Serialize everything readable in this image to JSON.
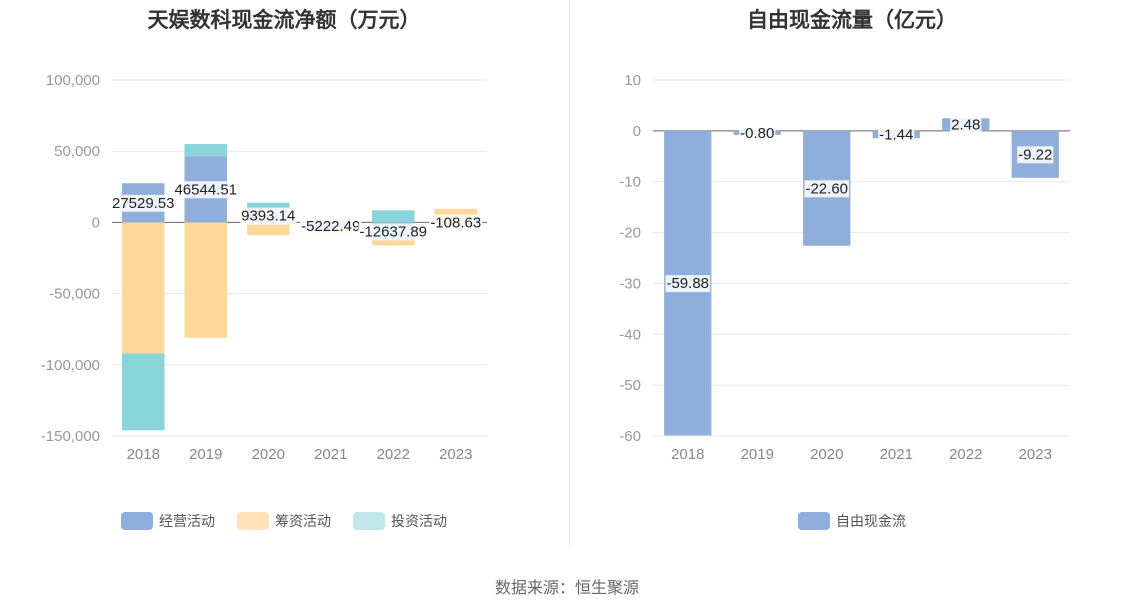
{
  "chart_data": [
    {
      "type": "bar",
      "stacked": true,
      "title": "天娱数科现金流净额（万元）",
      "categories": [
        "2018",
        "2019",
        "2020",
        "2021",
        "2022",
        "2023"
      ],
      "yticks": [
        "100,000",
        "50,000",
        "0",
        "-50,000",
        "-100,000",
        "-150,000"
      ],
      "ylim": [
        -150000,
        100000
      ],
      "series": [
        {
          "name": "经营活动",
          "color": "#8faedb",
          "values": [
            27529.53,
            46544.51,
            9393.14,
            -5222.49,
            -12637.89,
            -108.63
          ]
        },
        {
          "name": "筹资活动",
          "color": "#ffd899",
          "values": [
            -92000,
            -81000,
            -9000,
            -3000,
            -3500,
            9500
          ]
        },
        {
          "name": "投资活动",
          "color": "#88d6d9",
          "values": [
            -54000,
            8500,
            4500,
            2000,
            8500,
            -2000
          ]
        }
      ],
      "data_labels": [
        "27529.53",
        "46544.51",
        "9393.14",
        "-5222.49",
        "-12637.89",
        "-108.63"
      ],
      "legend": [
        {
          "name": "经营活动",
          "color": "#8faedb"
        },
        {
          "name": "筹资活动",
          "color": "#ffe3b8"
        },
        {
          "name": "投资活动",
          "color": "#c0e8ea"
        }
      ],
      "legend_position": "bottom",
      "grid": true
    },
    {
      "type": "bar",
      "title": "自由现金流量（亿元）",
      "categories": [
        "2018",
        "2019",
        "2020",
        "2021",
        "2022",
        "2023"
      ],
      "yticks": [
        "10",
        "0",
        "-10",
        "-20",
        "-30",
        "-40",
        "-50",
        "-60"
      ],
      "ylim": [
        -60,
        10
      ],
      "series": [
        {
          "name": "自由现金流",
          "color": "#8faedb",
          "values": [
            -59.88,
            -0.8,
            -22.6,
            -1.44,
            2.48,
            -9.22
          ]
        }
      ],
      "data_labels": [
        "-59.88",
        "-0.80",
        "-22.60",
        "-1.44",
        "2.48",
        "-9.22"
      ],
      "legend": [
        {
          "name": "自由现金流",
          "color": "#8faedb"
        }
      ],
      "legend_position": "bottom",
      "grid": true
    }
  ],
  "source": "数据来源：恒生聚源"
}
